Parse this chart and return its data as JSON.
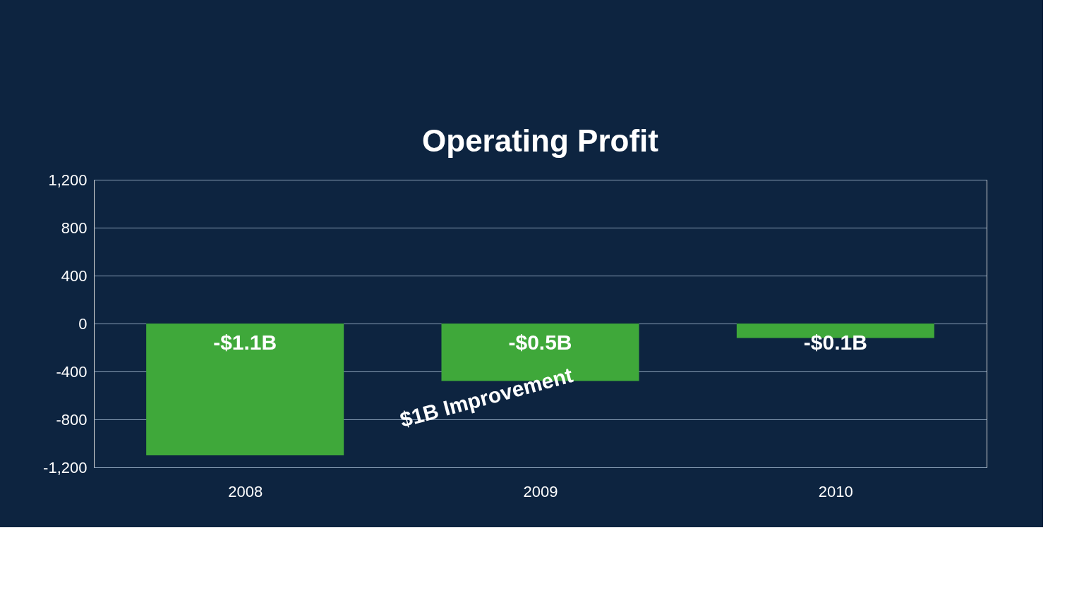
{
  "chart_data": {
    "type": "bar",
    "title": "Operating Profit",
    "categories": [
      "2008",
      "2009",
      "2010"
    ],
    "series": [
      {
        "color": "#3fa83a",
        "values": [
          -1100,
          -480,
          -120
        ]
      }
    ],
    "value_labels": [
      "-$1.1B",
      "-$0.5B",
      "-$0.1B"
    ],
    "ylim": [
      -1200,
      1200
    ],
    "yticks": [
      {
        "value": -1200,
        "label": "-1,200"
      },
      -800,
      -400,
      0,
      400,
      800,
      {
        "value": 1200,
        "label": "1,200"
      }
    ],
    "grid": "y",
    "annotations": [
      "$1B Improvement"
    ]
  }
}
